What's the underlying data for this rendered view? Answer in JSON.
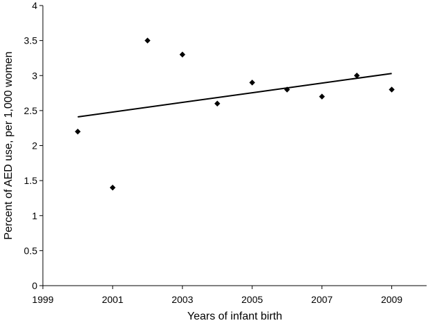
{
  "chart_data": {
    "type": "scatter",
    "title": "",
    "xlabel": "Years of infant birth",
    "ylabel": "Percent of AED use, per 1,000 women",
    "xlim": [
      1999,
      2010
    ],
    "ylim": [
      0,
      4
    ],
    "x_ticks": [
      1999,
      2001,
      2003,
      2005,
      2007,
      2009
    ],
    "x_tick_labels": [
      "1999",
      "2001",
      "2003",
      "2005",
      "2007",
      "2009"
    ],
    "y_ticks": [
      0,
      0.5,
      1,
      1.5,
      2,
      2.5,
      3,
      3.5,
      4
    ],
    "y_tick_labels": [
      "0",
      "0.5",
      "1",
      "1.5",
      "2",
      "2.5",
      "3",
      "3.5",
      "4"
    ],
    "grid": false,
    "marker": "diamond",
    "colors": {
      "points": "#000000",
      "trendline": "#000000",
      "axes": "#000000"
    },
    "points": [
      {
        "x": 2000,
        "y": 2.2
      },
      {
        "x": 2001,
        "y": 1.4
      },
      {
        "x": 2002,
        "y": 3.5
      },
      {
        "x": 2003,
        "y": 3.3
      },
      {
        "x": 2004,
        "y": 2.6
      },
      {
        "x": 2005,
        "y": 2.9
      },
      {
        "x": 2006,
        "y": 2.8
      },
      {
        "x": 2007,
        "y": 2.7
      },
      {
        "x": 2008,
        "y": 3.0
      },
      {
        "x": 2009,
        "y": 2.8
      }
    ],
    "trendline": {
      "type": "linear",
      "start": {
        "x": 2000,
        "y": 2.41
      },
      "end": {
        "x": 2009,
        "y": 3.03
      }
    }
  }
}
